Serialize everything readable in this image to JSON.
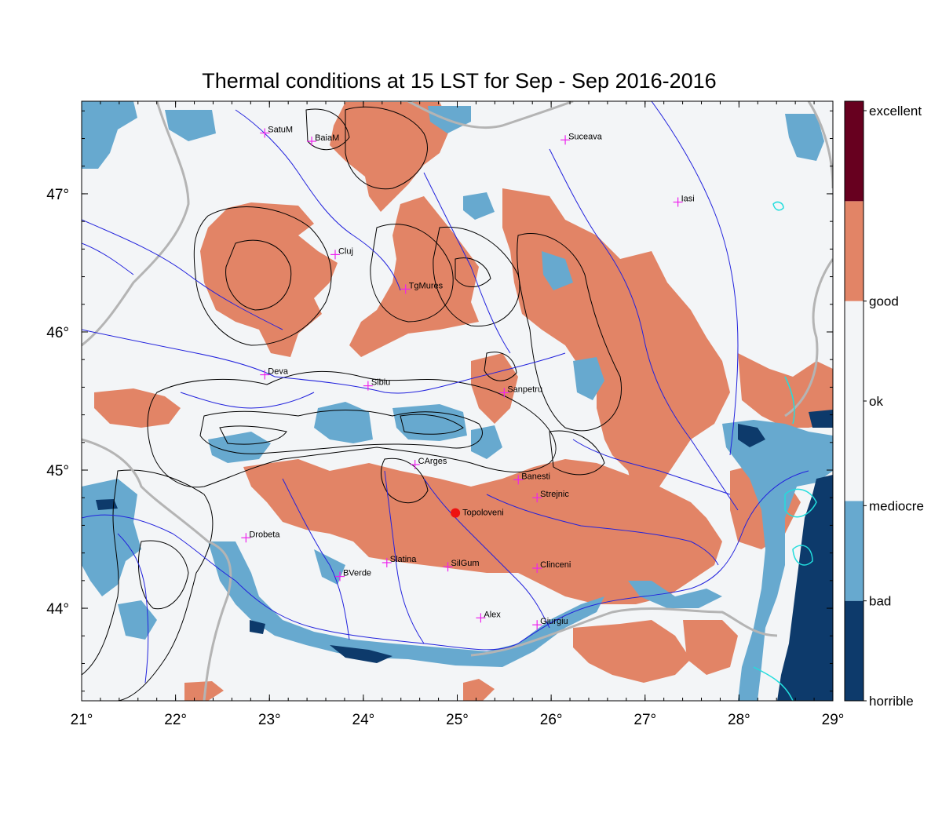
{
  "title": "Thermal conditions at 15 LST for Sep - Sep  2016-2016",
  "colors": {
    "background_ok": "#f3f5f7",
    "good": "#e28466",
    "bad": "#67a9cf",
    "horrible": "#0d3a6b",
    "excellent": "#67001f",
    "river": "#2222dd",
    "border": "#b4b4b4",
    "contour": "#000000",
    "city_marker": "#ee22ee",
    "highlight_marker": "#ee1111",
    "lake": "#22dddd"
  },
  "x_axis": {
    "ticks": [
      "21°",
      "22°",
      "23°",
      "24°",
      "25°",
      "26°",
      "27°",
      "28°",
      "29°"
    ],
    "range": [
      21,
      29
    ]
  },
  "y_axis": {
    "ticks": [
      "44°",
      "45°",
      "46°",
      "47°"
    ],
    "range": [
      43.33,
      47.67
    ]
  },
  "colorbar": {
    "labels": [
      "excellent",
      "good",
      "ok",
      "mediocre",
      "bad",
      "horrible"
    ],
    "segments": [
      {
        "name": "horrible",
        "color": "#0d3a6b"
      },
      {
        "name": "bad",
        "color": "#67a9cf"
      },
      {
        "name": "mediocre",
        "color": "#f3f5f7"
      },
      {
        "name": "ok",
        "color": "#f3f5f7"
      },
      {
        "name": "good",
        "color": "#e28466"
      },
      {
        "name": "excellent",
        "color": "#67001f"
      }
    ]
  },
  "cities": [
    {
      "name": "SatuM",
      "lon": 22.95,
      "lat": 47.44
    },
    {
      "name": "BaiaM",
      "lon": 23.45,
      "lat": 47.38
    },
    {
      "name": "Suceava",
      "lon": 26.15,
      "lat": 47.39
    },
    {
      "name": "Iasi",
      "lon": 27.35,
      "lat": 46.94
    },
    {
      "name": "Cluj",
      "lon": 23.7,
      "lat": 46.56
    },
    {
      "name": "TgMures",
      "lon": 24.45,
      "lat": 46.31
    },
    {
      "name": "Deva",
      "lon": 22.95,
      "lat": 45.69
    },
    {
      "name": "Sibiu",
      "lon": 24.05,
      "lat": 45.61
    },
    {
      "name": "Sanpetru",
      "lon": 25.5,
      "lat": 45.56
    },
    {
      "name": "CArges",
      "lon": 24.55,
      "lat": 45.04
    },
    {
      "name": "Banesti",
      "lon": 25.65,
      "lat": 44.93
    },
    {
      "name": "Strejnic",
      "lon": 25.85,
      "lat": 44.8
    },
    {
      "name": "Drobeta",
      "lon": 22.75,
      "lat": 44.51
    },
    {
      "name": "BVerde",
      "lon": 23.75,
      "lat": 44.23
    },
    {
      "name": "Slatina",
      "lon": 24.25,
      "lat": 44.33
    },
    {
      "name": "SilGum",
      "lon": 24.9,
      "lat": 44.3
    },
    {
      "name": "Clinceni",
      "lon": 25.85,
      "lat": 44.29
    },
    {
      "name": "Alex",
      "lon": 25.25,
      "lat": 43.93
    },
    {
      "name": "Giurgiu",
      "lon": 25.85,
      "lat": 43.88
    }
  ],
  "highlight": {
    "name": "Topoloveni",
    "lon": 24.98,
    "lat": 44.69
  }
}
